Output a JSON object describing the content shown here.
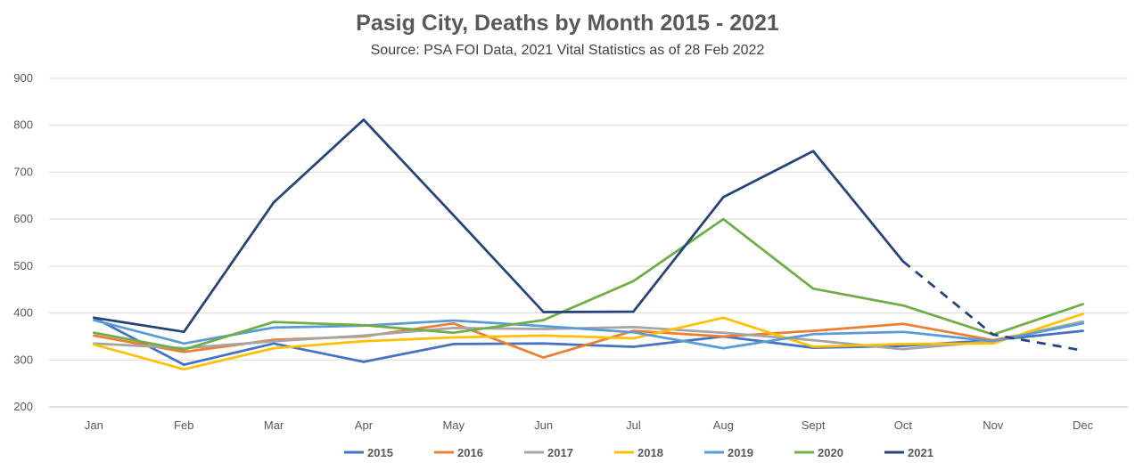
{
  "chart_data": {
    "type": "line",
    "title": "Pasig City, Deaths by Month 2015 - 2021",
    "subtitle": "Source: PSA FOI Data, 2021 Vital Statistics as of 28 Feb 2022",
    "categories": [
      "Jan",
      "Feb",
      "Mar",
      "Apr",
      "May",
      "Jun",
      "Jul",
      "Aug",
      "Sept",
      "Oct",
      "Nov",
      "Dec"
    ],
    "ylim": [
      200,
      900
    ],
    "yticks": [
      "200",
      "300",
      "400",
      "500",
      "600",
      "700",
      "800",
      "900"
    ],
    "grid": true,
    "legend_position": "bottom",
    "series": [
      {
        "name": "2015",
        "color": "#4472C4",
        "values": [
          390,
          290,
          335,
          296,
          334,
          335,
          328,
          350,
          326,
          330,
          342,
          362
        ]
      },
      {
        "name": "2016",
        "color": "#ED7D31",
        "values": [
          352,
          317,
          343,
          350,
          378,
          305,
          362,
          350,
          362,
          377,
          342,
          380
        ]
      },
      {
        "name": "2017",
        "color": "#A5A5A5",
        "values": [
          335,
          325,
          340,
          352,
          368,
          366,
          370,
          358,
          342,
          323,
          340,
          382
        ]
      },
      {
        "name": "2018",
        "color": "#FFC000",
        "values": [
          333,
          280,
          325,
          340,
          348,
          352,
          346,
          390,
          328,
          334,
          335,
          398
        ]
      },
      {
        "name": "2019",
        "color": "#5B9BD5",
        "values": [
          385,
          335,
          369,
          373,
          384,
          372,
          359,
          325,
          355,
          360,
          340,
          378
        ]
      },
      {
        "name": "2020",
        "color": "#70AD47",
        "values": [
          358,
          322,
          381,
          374,
          358,
          385,
          468,
          600,
          452,
          416,
          354,
          419
        ]
      },
      {
        "name": "2021",
        "color": "#264478",
        "values": [
          390,
          360,
          636,
          812,
          608,
          402,
          403,
          647,
          745,
          510,
          354,
          320
        ],
        "dashed_from_index": 9
      }
    ]
  }
}
